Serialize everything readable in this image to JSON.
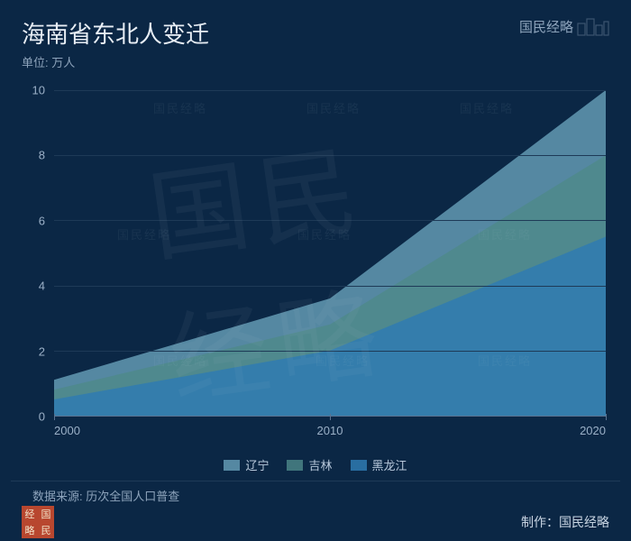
{
  "header": {
    "title": "海南省东北人变迁",
    "brand": "国民经略",
    "subtitle": "单位: 万人"
  },
  "chart": {
    "type": "stacked-area",
    "background_color": "#0b2745",
    "grid_color": "#1e3a57",
    "axis_color": "#5a7290",
    "text_color": "#9bb0c7",
    "label_fontsize": 13,
    "x": {
      "ticks": [
        2000,
        2010,
        2020
      ],
      "min": 2000,
      "max": 2020
    },
    "y": {
      "ticks": [
        0,
        2,
        4,
        6,
        8,
        10
      ],
      "min": 0,
      "max": 10
    },
    "series": [
      {
        "name": "辽宁",
        "color": "#6fa9c2",
        "opacity": 0.75,
        "values": [
          1.1,
          3.6,
          10.0
        ]
      },
      {
        "name": "吉林",
        "color": "#4e8a89",
        "opacity": 0.8,
        "values": [
          0.8,
          2.8,
          8.0
        ]
      },
      {
        "name": "黑龙江",
        "color": "#2f7bb2",
        "opacity": 0.85,
        "values": [
          0.5,
          2.0,
          5.5
        ]
      }
    ]
  },
  "source": {
    "label": "数据来源: 历次全国人口普查"
  },
  "footer": {
    "badge_chars": [
      "经",
      "国",
      "略",
      "民"
    ],
    "credit_prefix": "制作：",
    "credit_name": "国民经略"
  },
  "watermark_text": "国民经略"
}
